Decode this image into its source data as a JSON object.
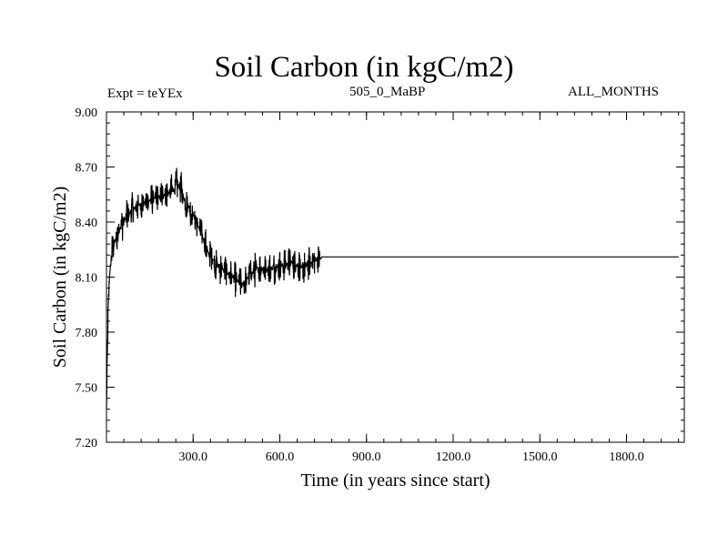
{
  "header": {
    "title": "Soil Carbon (in kgC/m2)",
    "experiment": "Expt = teYEx",
    "period": "505_0_MaBP",
    "months": "ALL_MONTHS"
  },
  "chart_data": {
    "type": "line",
    "title": "Soil Carbon (in kgC/m2)",
    "xlabel": "Time (in years since start)",
    "ylabel": "Soil Carbon (in kgC/m2)",
    "xlim": [
      0,
      2000
    ],
    "ylim": [
      7.2,
      9.0
    ],
    "xticks": [
      300,
      600,
      900,
      1200,
      1500,
      1800
    ],
    "xtick_labels": [
      "300.0",
      "600.0",
      "900.0",
      "1200.0",
      "1500.0",
      "1800.0"
    ],
    "yticks": [
      7.2,
      7.5,
      7.8,
      8.1,
      8.4,
      8.7,
      9.0
    ],
    "ytick_labels": [
      "7.20",
      "7.50",
      "7.80",
      "8.10",
      "8.40",
      "8.70",
      "9.00"
    ],
    "grid": false,
    "series": [
      {
        "color": "#000000",
        "x": [
          0,
          5,
          10,
          20,
          35,
          50,
          75,
          100,
          150,
          200,
          230,
          250,
          270,
          300,
          330,
          350,
          380,
          420,
          470,
          520,
          560,
          600,
          640,
          680,
          720,
          742,
          745,
          800,
          1000,
          1200,
          1400,
          1600,
          1800,
          2000
        ],
        "y": [
          7.38,
          7.85,
          8.1,
          8.25,
          8.32,
          8.38,
          8.44,
          8.48,
          8.52,
          8.55,
          8.57,
          8.6,
          8.52,
          8.44,
          8.33,
          8.24,
          8.17,
          8.12,
          8.06,
          8.15,
          8.14,
          8.16,
          8.18,
          8.15,
          8.19,
          8.2,
          8.21,
          8.21,
          8.21,
          8.21,
          8.21,
          8.21,
          8.21,
          8.21
        ],
        "noise_amplitude": [
          0.02,
          0.1,
          0.12,
          0.1,
          0.1,
          0.1,
          0.1,
          0.1,
          0.1,
          0.1,
          0.1,
          0.12,
          0.1,
          0.1,
          0.1,
          0.1,
          0.1,
          0.1,
          0.1,
          0.1,
          0.1,
          0.1,
          0.1,
          0.1,
          0.1,
          0.08,
          0,
          0,
          0,
          0,
          0,
          0,
          0,
          0
        ]
      }
    ]
  }
}
